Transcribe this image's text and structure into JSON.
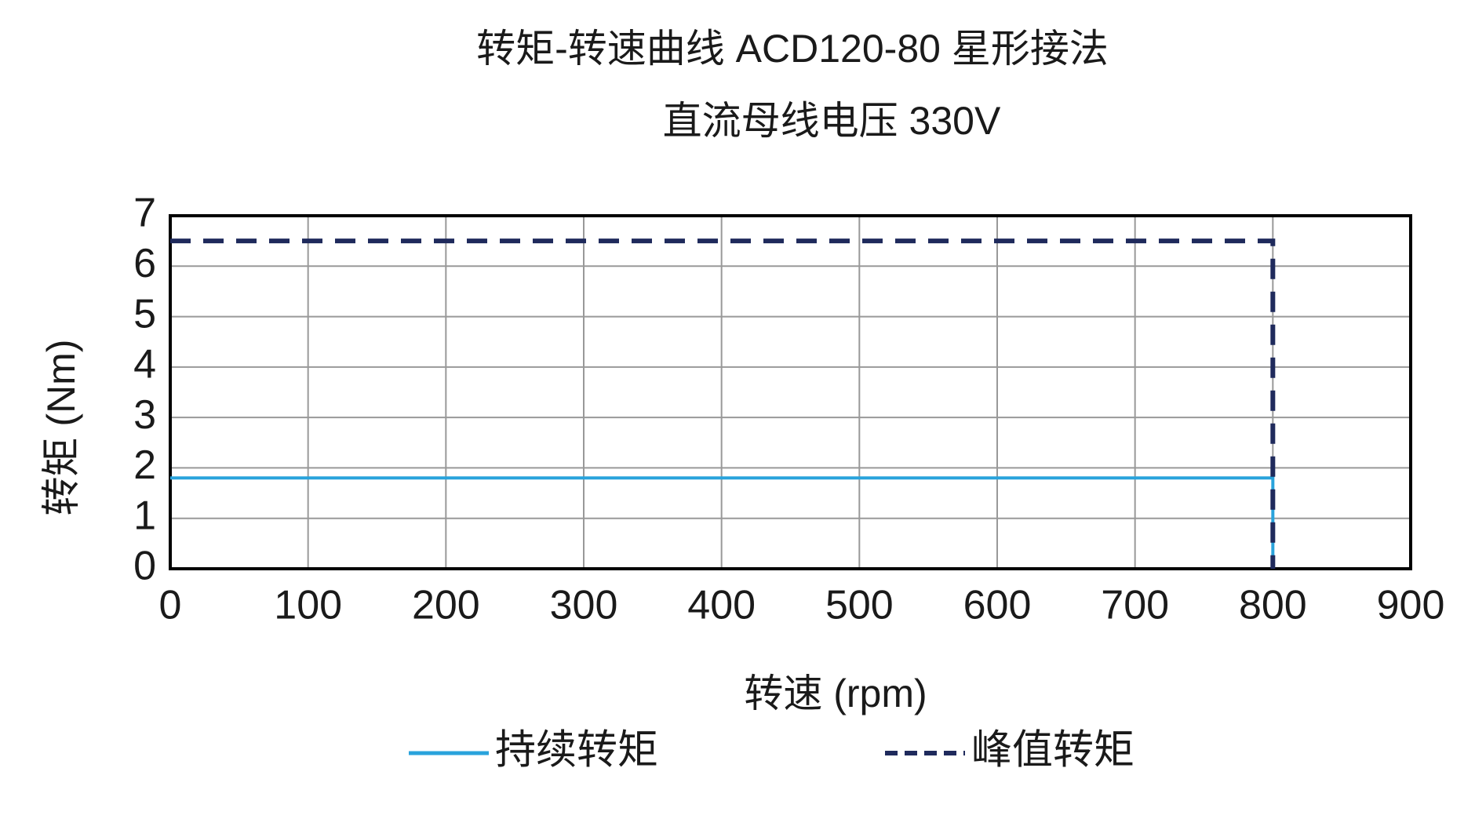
{
  "chart_data": {
    "type": "line",
    "title": "转矩-转速曲线 ACD120-80 星形接法",
    "subtitle": "直流母线电压 330V",
    "x_label": "转速 (rpm)",
    "y_label": "转矩 (Nm)",
    "x": [
      0,
      800,
      800
    ],
    "series": [
      {
        "name": "持续转矩",
        "color": "#29a3dc",
        "style": "solid",
        "values": [
          1.8,
          1.8,
          0
        ]
      },
      {
        "name": "峰值转矩",
        "color": "#1f2a5c",
        "style": "dashed",
        "values": [
          6.5,
          6.5,
          0
        ]
      }
    ],
    "xlim": [
      0,
      900
    ],
    "xticks": [
      0,
      100,
      200,
      300,
      400,
      500,
      600,
      700,
      800,
      900
    ],
    "ylim": [
      0,
      7
    ],
    "yticks": [
      0,
      1,
      2,
      3,
      4,
      5,
      6,
      7
    ],
    "grid": true
  }
}
